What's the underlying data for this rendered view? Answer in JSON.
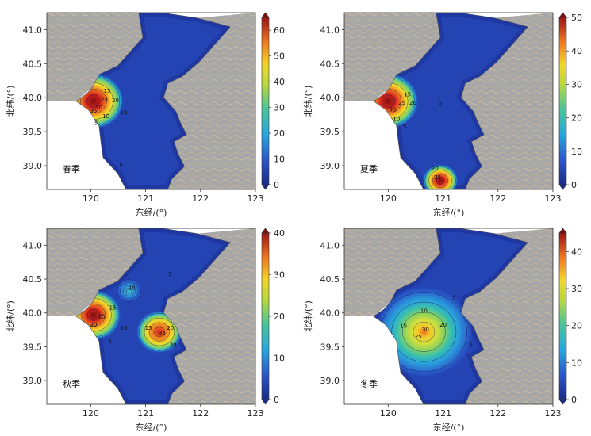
{
  "xlabel": "东经/(°)",
  "ylabel": "北纬/(°)",
  "x_ticks": [
    "120",
    "121",
    "122",
    "123"
  ],
  "y_ticks": [
    "39.0",
    "39.5",
    "40.0",
    "40.5",
    "41.0"
  ],
  "x_range": [
    119.2,
    123.0
  ],
  "y_range": [
    38.65,
    41.25
  ],
  "colors": {
    "land": "#a7a7a7",
    "land_texture": "#c9b79c",
    "sea_outside": "#ffffff",
    "contour_line": "#0b0b4a"
  },
  "panels": [
    {
      "season": "春季",
      "colorbar_ticks": [
        "0",
        "10",
        "20",
        "30",
        "40",
        "50",
        "60"
      ],
      "vmax": 65,
      "contour_labels": [
        "15",
        "20",
        "25",
        "30",
        "35",
        "10",
        "5",
        "10",
        "5"
      ]
    },
    {
      "season": "夏季",
      "colorbar_ticks": [
        "0",
        "10",
        "20",
        "30",
        "40",
        "50"
      ],
      "vmax": 50,
      "contour_labels": [
        "15",
        "20",
        "25",
        "30",
        "10",
        "5",
        "5",
        "20",
        "25"
      ]
    },
    {
      "season": "秋季",
      "colorbar_ticks": [
        "0",
        "10",
        "20",
        "30",
        "40"
      ],
      "vmax": 40,
      "contour_labels": [
        "10",
        "15",
        "25",
        "30",
        "10",
        "5",
        "15",
        "20",
        "35",
        "30",
        "5"
      ]
    },
    {
      "season": "冬季",
      "colorbar_ticks": [
        "0",
        "10",
        "20",
        "30",
        "40"
      ],
      "vmax": 45,
      "contour_labels": [
        "10",
        "15",
        "20",
        "30",
        "25",
        "5",
        "5"
      ]
    }
  ]
}
